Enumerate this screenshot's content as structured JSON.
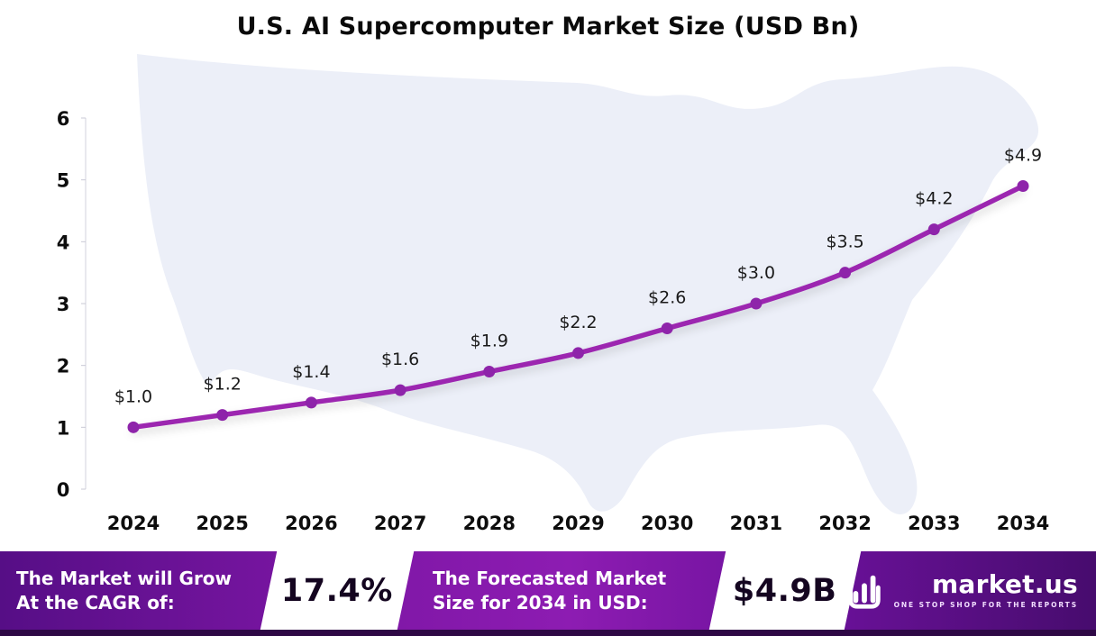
{
  "title": "U.S. AI Supercomputer  Market Size (USD Bn)",
  "chart_data": {
    "type": "line",
    "x": [
      "2024",
      "2025",
      "2026",
      "2027",
      "2028",
      "2029",
      "2030",
      "2031",
      "2032",
      "2033",
      "2034"
    ],
    "values": [
      1.0,
      1.2,
      1.4,
      1.6,
      1.9,
      2.2,
      2.6,
      3.0,
      3.5,
      4.2,
      4.9
    ],
    "point_labels": [
      "$1.0",
      "$1.2",
      "$1.4",
      "$1.6",
      "$1.9",
      "$2.2",
      "$2.6",
      "$3.0",
      "$3.5",
      "$4.2",
      "$4.9"
    ],
    "title": "U.S. AI Supercomputer Market Size (USD Bn)",
    "xlabel": "",
    "ylabel": "",
    "ylim": [
      0,
      6
    ],
    "yticks": [
      0,
      1,
      2,
      3,
      4,
      5,
      6
    ],
    "grid": false,
    "legend": "none",
    "line_color": "#9C27B0",
    "point_color": "#8E24AA",
    "label_color": "#1a1a1a",
    "axis_text_color": "#0d0d0d"
  },
  "footer": {
    "cagr_label_line1": "The Market will Grow",
    "cagr_label_line2": "At the CAGR of:",
    "cagr_value": "17.4%",
    "forecast_label_line1": "The Forecasted Market",
    "forecast_label_line2": "Size for 2034 in USD:",
    "forecast_value": "$4.9B",
    "logo_text": "market.us",
    "logo_tagline": "ONE STOP SHOP FOR THE REPORTS"
  },
  "colors": {
    "map_fill": "#ECEFF8",
    "footer_dark": "#470c6e",
    "footer_mid": "#8d1cb2",
    "strip": "#2e0845"
  }
}
